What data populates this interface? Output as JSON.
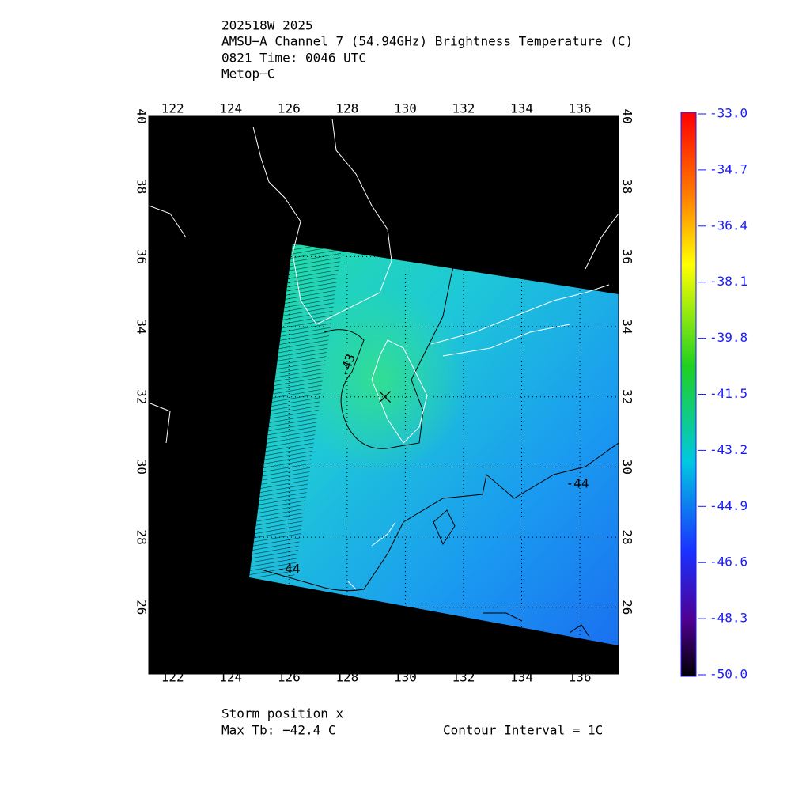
{
  "header": {
    "lines": [
      "202518W 2025",
      "AMSU−A Channel 7 (54.94GHz) Brightness Temperature (C)",
      "0821 Time: 0046 UTC",
      "Metop−C"
    ]
  },
  "map": {
    "xlim": [
      121.18,
      137.33
    ],
    "ylim": [
      24.1,
      40
    ],
    "xticks": [
      122,
      124,
      126,
      128,
      130,
      132,
      134,
      136
    ],
    "yticks": [
      26,
      28,
      30,
      32,
      34,
      36,
      38,
      40
    ],
    "storm_position": {
      "lon": 129.3,
      "lat": 32.0
    },
    "contour_labels": [
      "-43",
      "-44",
      "-44"
    ]
  },
  "colorbar": {
    "lim": [
      -50,
      -33
    ],
    "ticks": [
      {
        "value": -33,
        "label": "-33.0"
      },
      {
        "value": -34.7,
        "label": "-34.7"
      },
      {
        "value": -36.4,
        "label": "-36.4"
      },
      {
        "value": -38.1,
        "label": "-38.1"
      },
      {
        "value": -39.8,
        "label": "-39.8"
      },
      {
        "value": -41.5,
        "label": "-41.5"
      },
      {
        "value": -43.2,
        "label": "-43.2"
      },
      {
        "value": -44.9,
        "label": "-44.9"
      },
      {
        "value": -46.6,
        "label": "-46.6"
      },
      {
        "value": -48.3,
        "label": "-48.3"
      },
      {
        "value": -50,
        "label": "-50.0"
      }
    ]
  },
  "footer": {
    "storm": "Storm position x",
    "max_tb": "Max Tb: −42.4    C",
    "contour": "Contour Interval = 1C"
  }
}
